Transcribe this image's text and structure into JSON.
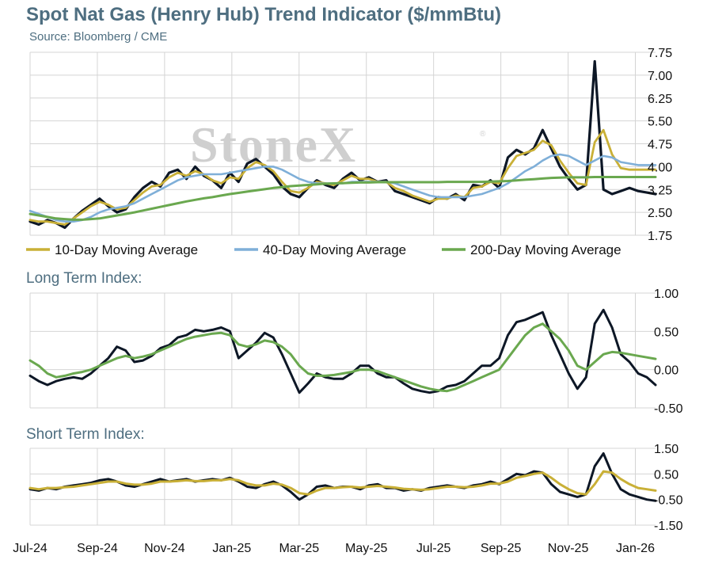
{
  "title": "Spot Nat Gas (Henry Hub) Trend Indicator ($/mmBtu)",
  "subtitle": "Source: Bloomberg / CME",
  "watermark": "StoneX",
  "watermark_mark": "®",
  "colors": {
    "price": "#0d1726",
    "ma10": "#c9b037",
    "ma40": "#7fafd8",
    "ma200": "#6aa84f",
    "long_term": "#0d1726",
    "long_term_signal": "#6aa84f",
    "short_term": "#0d1726",
    "short_term_signal": "#c9b037",
    "grid": "#d4d4d4",
    "title": "#4e6e80"
  },
  "x_labels": [
    "Jul-24",
    "Sep-24",
    "Nov-24",
    "Jan-25",
    "Mar-25",
    "May-25",
    "Jul-25",
    "Sep-25",
    "Nov-25",
    "Jan-26"
  ],
  "chart_data": [
    {
      "type": "line",
      "title": "",
      "ylim": [
        1.75,
        7.75
      ],
      "yticks": [
        "7.75",
        "7.00",
        "6.25",
        "5.50",
        "4.75",
        "4.00",
        "3.25",
        "2.50",
        "1.75"
      ],
      "grid": true,
      "legend_position": "bottom",
      "x": [
        0,
        8,
        16,
        24,
        32,
        40,
        48,
        56,
        64,
        72,
        80,
        88,
        96,
        104,
        112,
        120,
        128,
        136,
        144,
        152,
        160,
        168,
        176,
        184,
        192,
        200,
        208,
        216,
        224,
        232,
        240,
        248,
        256,
        264,
        272,
        280,
        288,
        296,
        304,
        312,
        320,
        328,
        336,
        344,
        352,
        360,
        368,
        376,
        384,
        392,
        400,
        408,
        416,
        424,
        432,
        440,
        448,
        456,
        464,
        472,
        480,
        488,
        496,
        504,
        512,
        520,
        528,
        536,
        544,
        552,
        560,
        568,
        576
      ],
      "series": [
        {
          "name": "",
          "key": "price",
          "values": [
            2.2,
            2.1,
            2.25,
            2.15,
            2.0,
            2.3,
            2.55,
            2.75,
            2.95,
            2.7,
            2.5,
            2.6,
            3.0,
            3.3,
            3.5,
            3.35,
            3.8,
            3.9,
            3.6,
            4.0,
            3.7,
            3.55,
            3.3,
            3.8,
            3.5,
            4.1,
            4.25,
            4.0,
            3.75,
            3.35,
            3.1,
            3.0,
            3.3,
            3.55,
            3.4,
            3.3,
            3.6,
            3.8,
            3.55,
            3.65,
            3.5,
            3.55,
            3.2,
            3.1,
            3.0,
            2.9,
            2.8,
            3.0,
            2.95,
            3.1,
            2.9,
            3.4,
            3.35,
            3.55,
            3.3,
            4.3,
            4.55,
            4.4,
            4.6,
            5.2,
            4.6,
            4.0,
            3.6,
            3.25,
            3.4,
            7.45,
            3.25,
            3.1,
            3.2,
            3.3,
            3.2,
            3.15,
            3.1
          ]
        },
        {
          "name": "10-Day Moving Average",
          "key": "ma10",
          "values": [
            2.25,
            2.2,
            2.2,
            2.15,
            2.1,
            2.3,
            2.5,
            2.7,
            2.85,
            2.75,
            2.6,
            2.65,
            2.9,
            3.15,
            3.35,
            3.4,
            3.65,
            3.8,
            3.7,
            3.85,
            3.75,
            3.55,
            3.45,
            3.65,
            3.6,
            3.95,
            4.15,
            4.05,
            3.85,
            3.5,
            3.2,
            3.15,
            3.3,
            3.5,
            3.45,
            3.4,
            3.55,
            3.7,
            3.6,
            3.6,
            3.5,
            3.5,
            3.3,
            3.2,
            3.05,
            2.95,
            2.85,
            2.95,
            2.95,
            3.05,
            3.0,
            3.3,
            3.35,
            3.5,
            3.45,
            3.95,
            4.35,
            4.45,
            4.55,
            4.85,
            4.7,
            4.2,
            3.8,
            3.45,
            3.4,
            4.8,
            5.2,
            4.4,
            3.95,
            3.9,
            3.9,
            3.9,
            3.9
          ]
        },
        {
          "name": "40-Day Moving Average",
          "key": "ma40",
          "values": [
            2.55,
            2.45,
            2.35,
            2.25,
            2.2,
            2.2,
            2.25,
            2.35,
            2.5,
            2.6,
            2.65,
            2.7,
            2.8,
            2.95,
            3.1,
            3.25,
            3.4,
            3.55,
            3.65,
            3.7,
            3.75,
            3.75,
            3.75,
            3.8,
            3.85,
            3.9,
            3.95,
            4.0,
            4.0,
            3.9,
            3.75,
            3.6,
            3.5,
            3.45,
            3.45,
            3.45,
            3.45,
            3.5,
            3.5,
            3.5,
            3.5,
            3.5,
            3.45,
            3.35,
            3.25,
            3.15,
            3.05,
            3.0,
            3.0,
            3.0,
            3.0,
            3.05,
            3.1,
            3.2,
            3.3,
            3.45,
            3.65,
            3.85,
            4.0,
            4.2,
            4.35,
            4.4,
            4.35,
            4.2,
            4.05,
            4.2,
            4.35,
            4.3,
            4.15,
            4.1,
            4.05,
            4.05,
            4.05
          ]
        },
        {
          "name": "200-Day Moving Average",
          "key": "ma200",
          "values": [
            2.45,
            2.4,
            2.35,
            2.3,
            2.28,
            2.26,
            2.26,
            2.28,
            2.3,
            2.35,
            2.4,
            2.45,
            2.5,
            2.56,
            2.62,
            2.68,
            2.74,
            2.8,
            2.86,
            2.91,
            2.96,
            3.0,
            3.05,
            3.1,
            3.14,
            3.18,
            3.22,
            3.26,
            3.3,
            3.33,
            3.36,
            3.38,
            3.4,
            3.42,
            3.44,
            3.45,
            3.46,
            3.47,
            3.48,
            3.48,
            3.49,
            3.49,
            3.49,
            3.49,
            3.49,
            3.49,
            3.49,
            3.49,
            3.5,
            3.5,
            3.5,
            3.5,
            3.5,
            3.51,
            3.52,
            3.53,
            3.55,
            3.57,
            3.59,
            3.61,
            3.63,
            3.64,
            3.65,
            3.65,
            3.65,
            3.66,
            3.66,
            3.66,
            3.66,
            3.66,
            3.66,
            3.66,
            3.66
          ]
        }
      ]
    },
    {
      "type": "line",
      "title": "Long Term Index:",
      "ylim": [
        -0.5,
        1.0
      ],
      "yticks": [
        "1.00",
        "0.50",
        "0.00",
        "-0.50"
      ],
      "grid": true,
      "x": [
        0,
        8,
        16,
        24,
        32,
        40,
        48,
        56,
        64,
        72,
        80,
        88,
        96,
        104,
        112,
        120,
        128,
        136,
        144,
        152,
        160,
        168,
        176,
        184,
        192,
        200,
        208,
        216,
        224,
        232,
        240,
        248,
        256,
        264,
        272,
        280,
        288,
        296,
        304,
        312,
        320,
        328,
        336,
        344,
        352,
        360,
        368,
        376,
        384,
        392,
        400,
        408,
        416,
        424,
        432,
        440,
        448,
        456,
        464,
        472,
        480,
        488,
        496,
        504,
        512,
        520,
        528,
        536,
        544,
        552,
        560,
        568,
        576
      ],
      "series": [
        {
          "name": "",
          "key": "long_term",
          "values": [
            -0.08,
            -0.15,
            -0.2,
            -0.15,
            -0.12,
            -0.1,
            -0.12,
            -0.05,
            0.05,
            0.15,
            0.3,
            0.25,
            0.1,
            0.12,
            0.18,
            0.28,
            0.32,
            0.42,
            0.45,
            0.52,
            0.5,
            0.52,
            0.55,
            0.5,
            0.15,
            0.25,
            0.35,
            0.48,
            0.42,
            0.2,
            -0.05,
            -0.3,
            -0.18,
            -0.05,
            -0.1,
            -0.12,
            -0.12,
            -0.05,
            0.05,
            0.05,
            -0.05,
            -0.1,
            -0.1,
            -0.18,
            -0.25,
            -0.28,
            -0.3,
            -0.28,
            -0.22,
            -0.2,
            -0.15,
            -0.05,
            0.05,
            0.05,
            0.15,
            0.45,
            0.62,
            0.65,
            0.7,
            0.75,
            0.45,
            0.2,
            -0.05,
            -0.25,
            -0.1,
            0.6,
            0.78,
            0.55,
            0.2,
            0.1,
            -0.05,
            -0.1,
            -0.2
          ]
        },
        {
          "name": "",
          "key": "long_term_signal",
          "values": [
            0.12,
            0.05,
            -0.05,
            -0.1,
            -0.08,
            -0.05,
            -0.03,
            0.0,
            0.05,
            0.1,
            0.15,
            0.18,
            0.15,
            0.17,
            0.2,
            0.25,
            0.3,
            0.35,
            0.4,
            0.43,
            0.45,
            0.47,
            0.48,
            0.45,
            0.33,
            0.3,
            0.33,
            0.38,
            0.36,
            0.3,
            0.2,
            0.05,
            -0.05,
            -0.08,
            -0.08,
            -0.07,
            -0.05,
            -0.03,
            0.0,
            0.0,
            -0.02,
            -0.06,
            -0.1,
            -0.14,
            -0.18,
            -0.22,
            -0.25,
            -0.27,
            -0.28,
            -0.25,
            -0.2,
            -0.15,
            -0.1,
            -0.05,
            0.0,
            0.15,
            0.3,
            0.45,
            0.55,
            0.6,
            0.5,
            0.4,
            0.25,
            0.05,
            0.0,
            0.1,
            0.2,
            0.23,
            0.22,
            0.2,
            0.18,
            0.16,
            0.14
          ]
        }
      ]
    },
    {
      "type": "line",
      "title": "Short Term Index:",
      "ylim": [
        -1.5,
        1.5
      ],
      "yticks": [
        "1.50",
        "0.50",
        "-0.50",
        "-1.50"
      ],
      "grid": true,
      "x": [
        0,
        8,
        16,
        24,
        32,
        40,
        48,
        56,
        64,
        72,
        80,
        88,
        96,
        104,
        112,
        120,
        128,
        136,
        144,
        152,
        160,
        168,
        176,
        184,
        192,
        200,
        208,
        216,
        224,
        232,
        240,
        248,
        256,
        264,
        272,
        280,
        288,
        296,
        304,
        312,
        320,
        328,
        336,
        344,
        352,
        360,
        368,
        376,
        384,
        392,
        400,
        408,
        416,
        424,
        432,
        440,
        448,
        456,
        464,
        472,
        480,
        488,
        496,
        504,
        512,
        520,
        528,
        536,
        544,
        552,
        560,
        568,
        576
      ],
      "series": [
        {
          "name": "",
          "key": "short_term",
          "values": [
            -0.1,
            -0.15,
            -0.05,
            -0.1,
            0.0,
            0.05,
            0.1,
            0.15,
            0.25,
            0.3,
            0.2,
            0.05,
            0.0,
            0.1,
            0.2,
            0.3,
            0.2,
            0.25,
            0.3,
            0.2,
            0.25,
            0.3,
            0.25,
            0.35,
            0.2,
            0.0,
            -0.05,
            0.1,
            0.2,
            0.05,
            -0.2,
            -0.5,
            -0.3,
            0.0,
            0.05,
            -0.05,
            0.0,
            0.0,
            -0.1,
            0.05,
            0.1,
            -0.05,
            -0.05,
            -0.15,
            -0.1,
            -0.15,
            -0.05,
            0.0,
            0.05,
            0.0,
            -0.05,
            0.05,
            0.1,
            0.2,
            0.1,
            0.3,
            0.5,
            0.45,
            0.6,
            0.55,
            0.1,
            -0.2,
            -0.3,
            -0.4,
            -0.3,
            0.8,
            1.3,
            0.5,
            -0.1,
            -0.3,
            -0.4,
            -0.5,
            -0.55
          ]
        },
        {
          "name": "",
          "key": "short_term_signal",
          "values": [
            -0.05,
            -0.1,
            -0.05,
            -0.05,
            -0.02,
            0.0,
            0.05,
            0.1,
            0.15,
            0.2,
            0.2,
            0.12,
            0.08,
            0.08,
            0.12,
            0.2,
            0.2,
            0.22,
            0.25,
            0.22,
            0.22,
            0.25,
            0.25,
            0.3,
            0.25,
            0.12,
            0.05,
            0.05,
            0.12,
            0.08,
            -0.05,
            -0.25,
            -0.3,
            -0.15,
            -0.05,
            -0.05,
            -0.02,
            0.0,
            -0.03,
            0.0,
            0.03,
            0.0,
            -0.03,
            -0.08,
            -0.1,
            -0.12,
            -0.1,
            -0.05,
            0.0,
            0.0,
            -0.02,
            0.0,
            0.05,
            0.12,
            0.12,
            0.2,
            0.35,
            0.42,
            0.5,
            0.55,
            0.35,
            0.1,
            -0.1,
            -0.25,
            -0.3,
            0.1,
            0.6,
            0.55,
            0.3,
            0.1,
            -0.05,
            -0.1,
            -0.15
          ]
        }
      ]
    }
  ]
}
